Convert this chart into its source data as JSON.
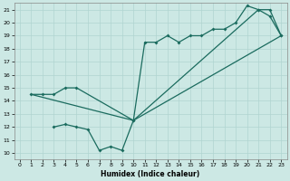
{
  "xlabel": "Humidex (Indice chaleur)",
  "xlim": [
    -0.5,
    23.5
  ],
  "ylim": [
    9.5,
    21.5
  ],
  "xticks": [
    0,
    1,
    2,
    3,
    4,
    5,
    6,
    7,
    8,
    9,
    10,
    11,
    12,
    13,
    14,
    15,
    16,
    17,
    18,
    19,
    20,
    21,
    22,
    23
  ],
  "yticks": [
    10,
    11,
    12,
    13,
    14,
    15,
    16,
    17,
    18,
    19,
    20,
    21
  ],
  "background_color": "#cce8e4",
  "grid_color": "#b0d4d0",
  "line_color": "#1a6b5e",
  "series1_x": [
    1,
    2,
    3,
    4,
    5,
    10,
    11,
    12,
    13,
    14,
    15,
    16,
    17,
    18,
    19,
    20,
    21,
    22,
    23
  ],
  "series1_y": [
    14.5,
    14.5,
    14.5,
    15.0,
    15.0,
    12.5,
    18.5,
    18.5,
    19.0,
    18.5,
    19.0,
    19.0,
    19.5,
    19.5,
    20.0,
    21.3,
    21.0,
    20.5,
    19.0
  ],
  "series2_x": [
    1,
    10,
    23
  ],
  "series2_y": [
    14.5,
    12.5,
    19.0
  ],
  "series3_x": [
    3,
    4,
    5,
    6,
    7,
    8,
    9,
    10,
    21,
    22,
    23
  ],
  "series3_y": [
    12.0,
    12.2,
    12.0,
    11.8,
    10.2,
    10.5,
    10.2,
    12.5,
    21.0,
    21.0,
    19.0
  ]
}
